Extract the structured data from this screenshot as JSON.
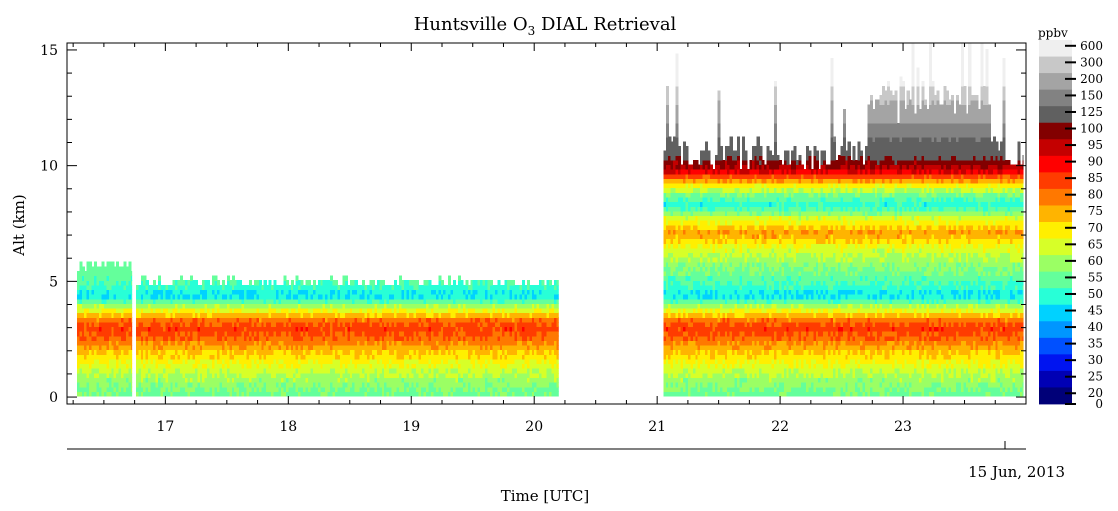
{
  "chart_data": {
    "type": "heatmap",
    "title_main": "Huntsville O",
    "title_sub": "3",
    "title_rest": " DIAL Retrieval",
    "xlabel": "Time [UTC]",
    "ylabel": "Alt (km)",
    "date_label": "15 Jun, 2013",
    "xlim": [
      16.2,
      24.0
    ],
    "ylim": [
      -0.3,
      15.3
    ],
    "x_ticks": [
      17,
      18,
      19,
      20,
      21,
      22,
      23
    ],
    "x_tick_labels": [
      "17",
      "18",
      "19",
      "20",
      "21",
      "22",
      "23"
    ],
    "y_ticks": [
      0,
      5,
      10,
      15
    ],
    "y_tick_labels": [
      "0",
      "5",
      "10",
      "15"
    ],
    "colorbar": {
      "unit": "ppbv",
      "labels": [
        "600",
        "300",
        "200",
        "150",
        "125",
        "100",
        "95",
        "90",
        "85",
        "80",
        "75",
        "70",
        "65",
        "60",
        "55",
        "50",
        "45",
        "40",
        "35",
        "30",
        "25",
        "20",
        "0"
      ],
      "colors": [
        "#efefef",
        "#c8c8c8",
        "#a4a4a4",
        "#828282",
        "#606060",
        "#820000",
        "#c40000",
        "#ff0000",
        "#ff3c00",
        "#ff7800",
        "#ffb400",
        "#ffef00",
        "#d7ff28",
        "#9bff64",
        "#64ff9b",
        "#28ffd7",
        "#00d2ff",
        "#0096ff",
        "#0050ff",
        "#0014f0",
        "#0000b4",
        "#000078"
      ]
    },
    "segments": [
      {
        "x": [
          16.28,
          16.73
        ],
        "top_km": 5.6
      },
      {
        "x": [
          16.76,
          20.2
        ],
        "top_km": 4.9
      },
      {
        "x": [
          21.05,
          23.98
        ],
        "top_km": 10.5
      }
    ],
    "profile_stops": [
      {
        "alt": 0.0,
        "ppbv": 53
      },
      {
        "alt": 0.6,
        "ppbv": 57
      },
      {
        "alt": 1.3,
        "ppbv": 64
      },
      {
        "alt": 1.9,
        "ppbv": 71
      },
      {
        "alt": 2.5,
        "ppbv": 80
      },
      {
        "alt": 2.9,
        "ppbv": 83
      },
      {
        "alt": 3.3,
        "ppbv": 77
      },
      {
        "alt": 3.8,
        "ppbv": 60
      },
      {
        "alt": 4.3,
        "ppbv": 44
      },
      {
        "alt": 4.8,
        "ppbv": 50
      },
      {
        "alt": 5.6,
        "ppbv": 56
      },
      {
        "alt": 6.4,
        "ppbv": 64
      },
      {
        "alt": 7.0,
        "ppbv": 75
      },
      {
        "alt": 7.6,
        "ppbv": 64
      },
      {
        "alt": 8.2,
        "ppbv": 47
      },
      {
        "alt": 8.7,
        "ppbv": 55
      },
      {
        "alt": 9.2,
        "ppbv": 72
      },
      {
        "alt": 9.7,
        "ppbv": 92
      },
      {
        "alt": 10.2,
        "ppbv": 100
      },
      {
        "alt": 11.5,
        "ppbv": 135
      },
      {
        "alt": 13.0,
        "ppbv": 220
      },
      {
        "alt": 14.5,
        "ppbv": 600
      }
    ]
  }
}
